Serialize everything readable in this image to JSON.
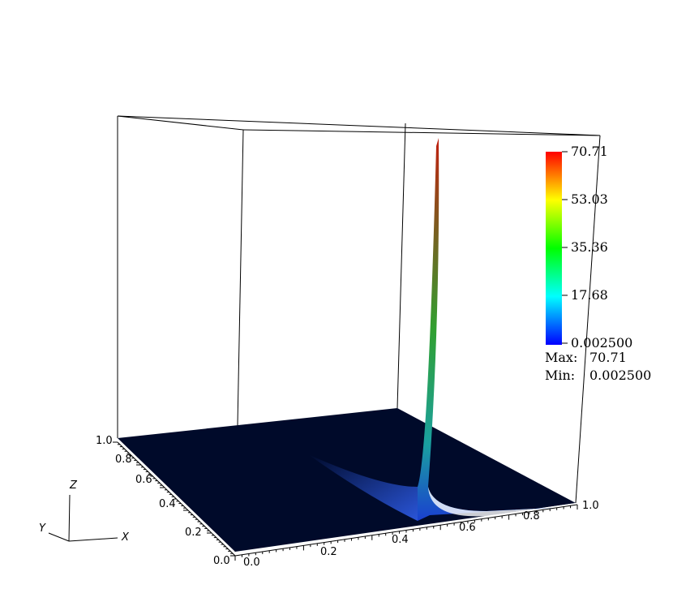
{
  "legend": {
    "ticks": [
      "70.71",
      "53.03",
      "35.36",
      "17.68",
      "0.002500"
    ],
    "max_label": "Max:",
    "max": "70.71",
    "min_label": "Min:",
    "min": "0.002500"
  },
  "axes": {
    "x_ticks": [
      "0.0",
      "0.2",
      "0.4",
      "0.6",
      "0.8",
      "1.0"
    ],
    "y_ticks": [
      "0.0",
      "0.2",
      "0.4",
      "0.6",
      "0.8",
      "1.0"
    ],
    "triad": [
      "X",
      "Y",
      "Z"
    ]
  }
}
